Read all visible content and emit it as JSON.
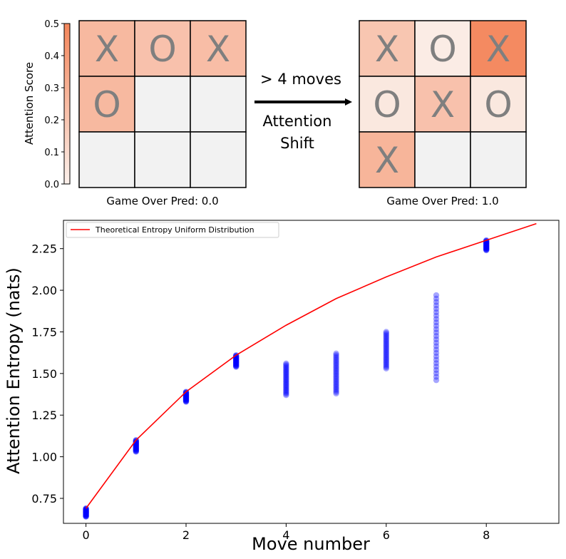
{
  "colorbar": {
    "label": "Attention Score",
    "ticks": [
      "0.0",
      "0.1",
      "0.2",
      "0.3",
      "0.4",
      "0.5"
    ],
    "tick_values": [
      0.0,
      0.1,
      0.2,
      0.3,
      0.4,
      0.5
    ],
    "range": [
      0,
      0.5
    ],
    "color_low": "#fbf0eb",
    "color_high": "#f4865b"
  },
  "board_left": {
    "caption": "Game Over Pred: 0.0",
    "cells": [
      {
        "mark": "X",
        "score": 0.26
      },
      {
        "mark": "O",
        "score": 0.22
      },
      {
        "mark": "X",
        "score": 0.24
      },
      {
        "mark": "O",
        "score": 0.26
      },
      {
        "mark": "",
        "score": 0.0
      },
      {
        "mark": "",
        "score": 0.0
      },
      {
        "mark": "",
        "score": 0.0
      },
      {
        "mark": "",
        "score": 0.0
      },
      {
        "mark": "",
        "score": 0.0
      }
    ]
  },
  "board_right": {
    "caption": "Game Over Pred: 1.0",
    "cells": [
      {
        "mark": "X",
        "score": 0.2
      },
      {
        "mark": "O",
        "score": 0.02
      },
      {
        "mark": "X",
        "score": 0.48
      },
      {
        "mark": "O",
        "score": 0.04
      },
      {
        "mark": "X",
        "score": 0.22
      },
      {
        "mark": "O",
        "score": 0.04
      },
      {
        "mark": "X",
        "score": 0.28
      },
      {
        "mark": "",
        "score": 0.0
      },
      {
        "mark": "",
        "score": 0.0
      }
    ]
  },
  "arrow": {
    "top_label": "> 4 moves",
    "bottom_label_line1": "Attention",
    "bottom_label_line2": "Shift"
  },
  "chart_data": {
    "type": "scatter",
    "xlabel": "Move number",
    "ylabel": "Attention Entropy (nats)",
    "xlim": [
      -0.45,
      9.45
    ],
    "ylim": [
      0.6,
      2.42
    ],
    "xticks": [
      0,
      2,
      4,
      6,
      8
    ],
    "yticks": [
      0.75,
      1.0,
      1.25,
      1.5,
      1.75,
      2.0,
      2.25
    ],
    "ytick_labels": [
      "0.75",
      "1.00",
      "1.25",
      "1.50",
      "1.75",
      "2.00",
      "2.25"
    ],
    "legend": {
      "position": "top-left",
      "label": "Theoretical Entropy Uniform Distribution"
    },
    "line": {
      "name": "Theoretical Entropy Uniform Distribution",
      "color": "#ff0000",
      "x": [
        0,
        1,
        2,
        3,
        4,
        5,
        6,
        7,
        8,
        9
      ],
      "y": [
        0.69,
        1.1,
        1.39,
        1.61,
        1.79,
        1.95,
        2.08,
        2.2,
        2.3,
        2.4
      ]
    },
    "scatter": {
      "color": "#0000ff",
      "points_by_move": [
        {
          "x": 0,
          "ymin": 0.64,
          "ymax": 0.69
        },
        {
          "x": 1,
          "ymin": 1.03,
          "ymax": 1.1
        },
        {
          "x": 2,
          "ymin": 1.33,
          "ymax": 1.39
        },
        {
          "x": 3,
          "ymin": 1.54,
          "ymax": 1.61
        },
        {
          "x": 4,
          "ymin": 1.37,
          "ymax": 1.56
        },
        {
          "x": 5,
          "ymin": 1.38,
          "ymax": 1.62
        },
        {
          "x": 6,
          "ymin": 1.53,
          "ymax": 1.75
        },
        {
          "x": 7,
          "ymin": 1.46,
          "ymax": 1.97
        },
        {
          "x": 8,
          "ymin": 2.24,
          "ymax": 2.3
        }
      ]
    }
  }
}
